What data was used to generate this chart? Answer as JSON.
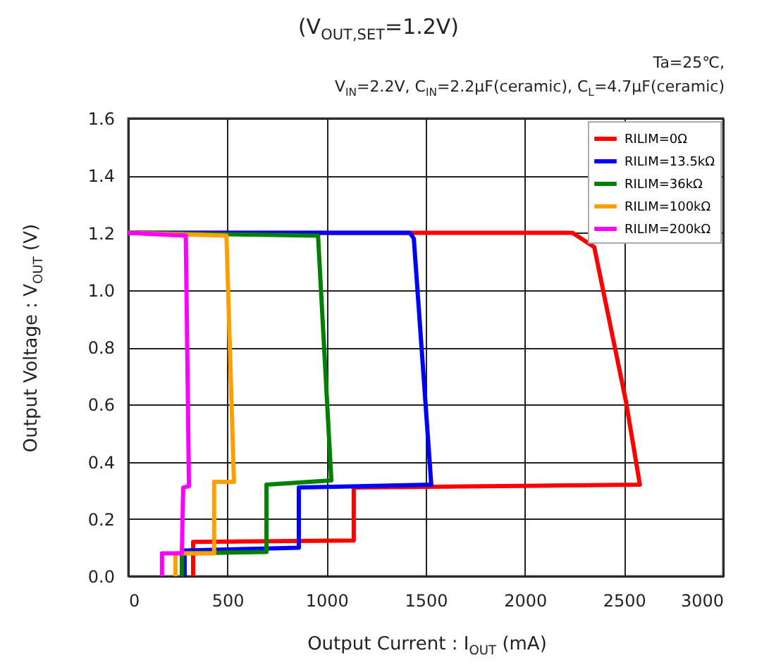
{
  "chart_data": {
    "type": "line",
    "title": "(V$_{OUT,SET}$=1.2V)",
    "annotations": [
      "Ta=25℃,",
      "V$_{IN}$=2.2V, C$_{IN}$=2.2μF(ceramic), C$_{L}$=4.7μF(ceramic)"
    ],
    "xlabel": "Output Current : I$_{OUT}$ (mA)",
    "ylabel": "Output Voltage : V$_{OUT}$ (V)",
    "xlim": [
      0,
      3000
    ],
    "xticks": [
      0,
      500,
      1000,
      1500,
      2000,
      2500,
      3000
    ],
    "ylim": [
      0,
      1.6
    ],
    "yticks": [
      {
        "value": 0,
        "label": "0.0"
      },
      {
        "value": 0.2,
        "label": "0.2"
      },
      {
        "value": 0.4,
        "label": "0.4"
      },
      {
        "value": 0.6,
        "label": "0.6"
      },
      {
        "value": 0.8,
        "label": "0.8"
      },
      {
        "value": 1.0,
        "label": "1.0"
      },
      {
        "value": 1.2,
        "label": "1.2"
      },
      {
        "value": 1.4,
        "label": "1.4"
      },
      {
        "value": 1.6,
        "label": "1.6"
      }
    ],
    "grid": true,
    "legend": "top right",
    "marker": "none",
    "line_style": "solid",
    "series": [
      {
        "name": "RILIM=0Ω",
        "color": "#ff0000",
        "x": [
          0,
          2240,
          2350,
          2510,
          2580,
          1137,
          1137,
          327,
          327
        ],
        "values": [
          1.2,
          1.2,
          1.15,
          0.61,
          0.32,
          0.31,
          0.125,
          0.12,
          0.0
        ]
      },
      {
        "name": "RILIM=13.5kΩ",
        "color": "#0000ff",
        "x": [
          0,
          1420,
          1440,
          1528,
          860,
          860,
          284,
          284
        ],
        "values": [
          1.2,
          1.2,
          1.18,
          0.32,
          0.31,
          0.1,
          0.09,
          0.0
        ]
      },
      {
        "name": "RILIM=36kΩ",
        "color": "#008000",
        "x": [
          0,
          957,
          1024,
          697,
          697,
          270,
          270
        ],
        "values": [
          1.2,
          1.19,
          0.335,
          0.32,
          0.085,
          0.08,
          0.0
        ]
      },
      {
        "name": "RILIM=100kΩ",
        "color": "#ffa000",
        "x": [
          0,
          495,
          533,
          433,
          433,
          238,
          238
        ],
        "values": [
          1.2,
          1.19,
          0.33,
          0.33,
          0.08,
          0.08,
          0.0
        ]
      },
      {
        "name": "RILIM=200kΩ",
        "color": "#ff00ff",
        "x": [
          0,
          290,
          306,
          277,
          270,
          170,
          170
        ],
        "values": [
          1.2,
          1.19,
          0.315,
          0.31,
          0.08,
          0.08,
          0.0
        ]
      }
    ]
  }
}
